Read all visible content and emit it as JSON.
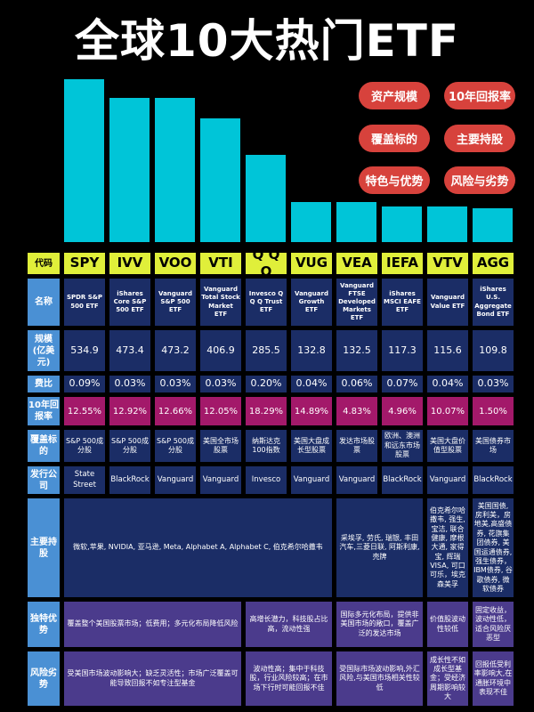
{
  "title": "全球10大热门ETF",
  "tags": [
    "资产规模",
    "10年回报率",
    "覆盖标的",
    "主要持股",
    "特色与优势",
    "风险与劣势"
  ],
  "colors": {
    "bar": "#00c5d8",
    "code": "#e0ef3a",
    "label": "#4a90d4",
    "cell": "#1b2d66",
    "return": "#a3196a",
    "feature": "#4b3b8c",
    "tag": "#d7423c"
  },
  "chart_data": {
    "type": "bar",
    "categories": [
      "SPY",
      "IVV",
      "VOO",
      "VTI",
      "QQQ",
      "VUG",
      "VEA",
      "IEFA",
      "VTV",
      "AGG"
    ],
    "values": [
      534.9,
      473.4,
      473.2,
      406.9,
      285.5,
      132.8,
      132.5,
      117.3,
      115.6,
      109.8
    ]
  },
  "labels": {
    "code": "代码",
    "name": "名称",
    "scale": "规模(亿美元)",
    "fee": "费比",
    "ret": "10年回报率",
    "cover": "覆盖标的",
    "issuer": "发行公司",
    "holdings": "主要持股",
    "adv": "独特优势",
    "risk": "风险劣势"
  },
  "codes": [
    "SPY",
    "IVV",
    "VOO",
    "VTI",
    "Q Q Q",
    "VUG",
    "VEA",
    "IEFA",
    "VTV",
    "AGG"
  ],
  "names": [
    "SPDR S&P 500 ETF",
    "iShares Core S&P 500 ETF",
    "Vanguard S&P 500 ETF",
    "Vanguard Total Stock Market ETF",
    "Invesco Q Q Q Trust ETF",
    "Vanguard Growth ETF",
    "Vanguard FTSE Developed Markets ETF",
    "iShares MSCI EAFE ETF",
    "Vanguard Value ETF",
    "iShares U.S. Aggregate Bond ETF"
  ],
  "scale": [
    "534.9",
    "473.4",
    "473.2",
    "406.9",
    "285.5",
    "132.8",
    "132.5",
    "117.3",
    "115.6",
    "109.8"
  ],
  "fee": [
    "0.09%",
    "0.03%",
    "0.03%",
    "0.03%",
    "0.20%",
    "0.04%",
    "0.06%",
    "0.07%",
    "0.04%",
    "0.03%"
  ],
  "ret": [
    "12.55%",
    "12.92%",
    "12.66%",
    "12.05%",
    "18.29%",
    "14.89%",
    "4.83%",
    "4.96%",
    "10.07%",
    "1.50%"
  ],
  "cover": [
    "S&P 500成分股",
    "S&P 500成分股",
    "S&P 500成分股",
    "美国全市场股票",
    "纳斯达克100指数",
    "美国大盘成长型股票",
    "发达市场股票",
    "欧洲、澳洲和远东市场股票",
    "美国大盘价值型股票",
    "美国债券市场"
  ],
  "issuer": [
    "State Street",
    "BlackRock",
    "Vanguard",
    "Vanguard",
    "Invesco",
    "Vanguard",
    "Vanguard",
    "BlackRock",
    "Vanguard",
    "BlackRock"
  ],
  "holdings": [
    "微软,苹果, NVIDIA, 亚马逊, Meta, Alphabet A, Alphabet C, 伯克希尔哈撒韦",
    "采埃孚, 劳氏, 瑞银, 丰田汽车,三菱日联, 阿斯利康, 壳牌",
    "伯克希尔哈撒韦, 强生, 宝洁, 联合健康, 摩根大通, 家得宝, 辉瑞 VISA, 可口可乐，埃克森美孚",
    "美国国债, 房利美，房地美,高盛债券, 花旗集团债券, 美国运通债券, 强生债券，IBM债券, 谷歌债券, 微软债券"
  ],
  "adv": [
    "覆盖整个美国股票市场；低费用；多元化布局降低风险",
    "高增长潜力，科技股占比高，流动性强",
    "国际多元化布局，提供非美国市场的敞口，覆盖广泛的发达市场",
    "价值股波动性较低",
    "固定收益，波动性低，适合风险厌恶型"
  ],
  "risk": [
    "受美国市场波动影响大；缺乏灵活性；市场广泛覆盖可能导致回报不如专注型基金",
    "波动性高；集中于科技股，行业风险较高；在市场下行时可能回报不佳",
    "受国际市场波动影响,外汇风险,与美国市场相关性较低",
    "成长性不如成长型基金；受经济周期影响较大",
    "回报低受利率影响大,在通胀环境中表现不佳"
  ]
}
